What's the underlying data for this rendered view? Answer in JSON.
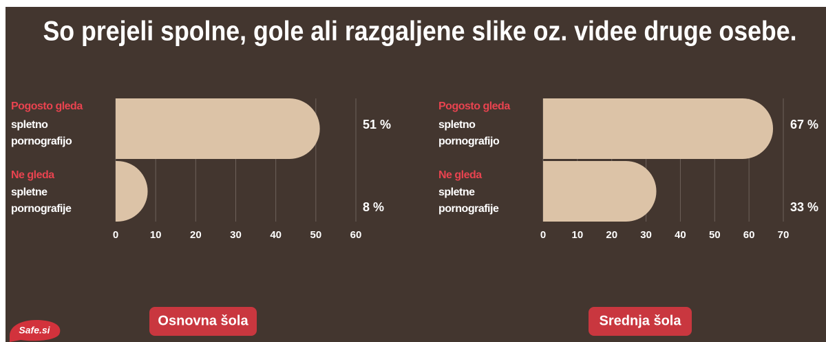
{
  "title": "So prejeli spolne, gole ali razgaljene slike oz. videe druge osebe.",
  "logo": "Safe.si",
  "chart_data": [
    {
      "type": "bar",
      "label": "Osnovna šola",
      "categories": [
        [
          "Pogosto gleda",
          "spletno",
          "pornografijo"
        ],
        [
          "Ne gleda",
          "spletne",
          "pornografije"
        ]
      ],
      "values": [
        51,
        8
      ],
      "value_labels": [
        "51 %",
        "8 %"
      ],
      "xlim": [
        0,
        60
      ],
      "xticks": [
        0,
        10,
        20,
        30,
        40,
        50,
        60
      ],
      "color": "#dcc3a7",
      "grid": true
    },
    {
      "type": "bar",
      "label": "Srednja šola",
      "categories": [
        [
          "Pogosto gleda",
          "spletno",
          "pornografijo"
        ],
        [
          "Ne gleda",
          "spletne",
          "pornografije"
        ]
      ],
      "values": [
        67,
        33
      ],
      "value_labels": [
        "67 %",
        "33 %"
      ],
      "xlim": [
        0,
        70
      ],
      "xticks": [
        0,
        10,
        20,
        30,
        40,
        50,
        60,
        70
      ],
      "color": "#dcc3a7",
      "grid": true
    }
  ]
}
